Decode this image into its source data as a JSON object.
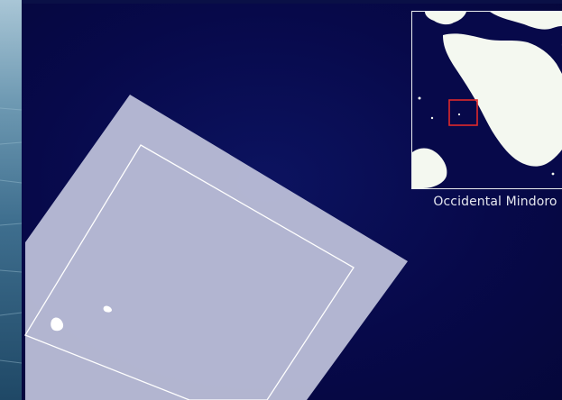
{
  "inset": {
    "caption": "Occidental Mindoro"
  },
  "colors": {
    "background": "#07094a",
    "sea_strip": "#3d6f92",
    "frame_fill": "#b9bcd6",
    "frame_inner_line": "#ffffff",
    "island_fill": "#ffffff",
    "landmass": "#f4f8f0",
    "locator_box": "#e0292b"
  },
  "features": {
    "outer_frame": "rotated-survey-frame",
    "inner_frame": "inner-boundary-square",
    "islets_count": 2,
    "locator": "red-square-locator"
  }
}
